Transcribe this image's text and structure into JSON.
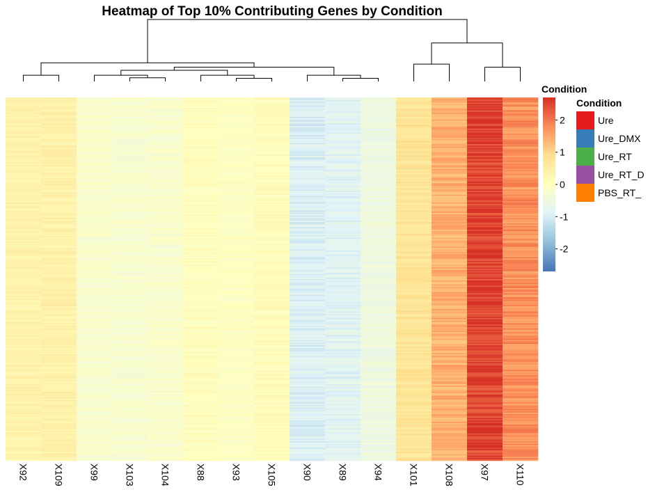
{
  "chart_data": {
    "type": "heatmap",
    "title": "Heatmap of Top 10% Contributing Genes by Condition",
    "columns": [
      "X92",
      "X109",
      "X99",
      "X103",
      "X104",
      "X88",
      "X93",
      "X105",
      "X90",
      "X89",
      "X94",
      "X101",
      "X108",
      "X97",
      "X110"
    ],
    "column_mean_values": [
      0.35,
      0.4,
      -0.2,
      -0.25,
      -0.2,
      0.05,
      -0.05,
      0.1,
      -0.95,
      -0.85,
      -0.5,
      0.75,
      1.4,
      2.55,
      1.75
    ],
    "color_scale": {
      "title": "Condition",
      "range": [
        -2.7,
        2.7
      ],
      "ticks": [
        2,
        1,
        0,
        -1,
        -2
      ],
      "colors": [
        "#4575b4",
        "#91bfdb",
        "#e0f3f8",
        "#ffffbf",
        "#fee090",
        "#fc8d59",
        "#d73027"
      ]
    },
    "annotation_legend": {
      "title": "Condition",
      "items": [
        {
          "label": "Ure",
          "color": "#e41a1c"
        },
        {
          "label": "Ure_DMX",
          "color": "#377eb8"
        },
        {
          "label": "Ure_RT",
          "color": "#4daf4a"
        },
        {
          "label": "Ure_RT_D",
          "color": "#984ea3"
        },
        {
          "label": "PBS_RT_",
          "color": "#ff7f00"
        }
      ]
    },
    "dendrogram": {
      "merges": [
        {
          "a": 6,
          "b": 7,
          "h": 0.05
        },
        {
          "a": 3,
          "b": 4,
          "h": 0.06
        },
        {
          "a": 9,
          "b": 10,
          "h": 0.05
        },
        {
          "a": 5,
          "b": "m0",
          "h": 0.1
        },
        {
          "a": 2,
          "b": "m1",
          "h": 0.1
        },
        {
          "a": "m4",
          "b": "m3",
          "h": 0.18
        },
        {
          "a": 8,
          "b": "m2",
          "h": 0.1
        },
        {
          "a": "m5",
          "b": "m6",
          "h": 0.23
        },
        {
          "a": 0,
          "b": 1,
          "h": 0.1
        },
        {
          "a": "m8",
          "b": "m7",
          "h": 0.3
        },
        {
          "a": 11,
          "b": 12,
          "h": 0.28
        },
        {
          "a": 13,
          "b": 14,
          "h": 0.23
        },
        {
          "a": "m10",
          "b": "m11",
          "h": 0.62
        },
        {
          "a": "m9",
          "b": "m12",
          "h": 1.0
        }
      ]
    }
  }
}
